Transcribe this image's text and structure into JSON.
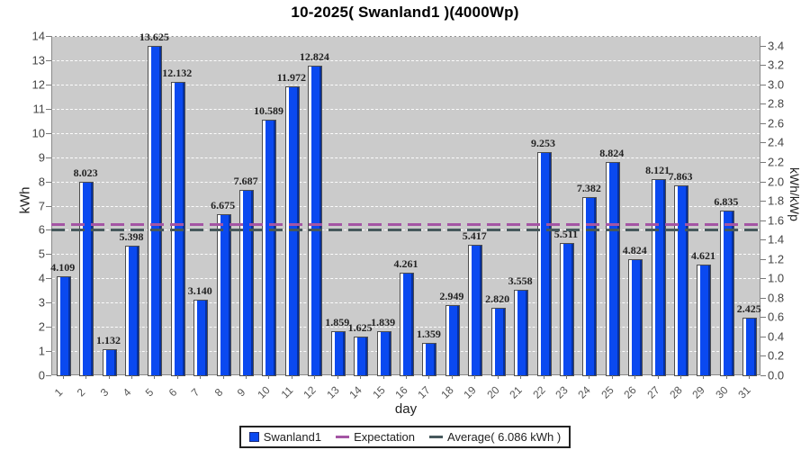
{
  "title": "10-2025( Swanland1 )(4000Wp)",
  "chart_data": {
    "type": "bar",
    "title": "10-2025( Swanland1 )(4000Wp)",
    "series_name": "Swanland1",
    "categories": [
      1,
      2,
      3,
      4,
      5,
      6,
      7,
      8,
      9,
      10,
      11,
      12,
      13,
      14,
      15,
      16,
      17,
      18,
      19,
      20,
      21,
      22,
      23,
      24,
      25,
      26,
      27,
      28,
      29,
      30,
      31
    ],
    "values": [
      4.109,
      8.023,
      1.132,
      5.398,
      13.625,
      12.132,
      3.14,
      6.675,
      7.687,
      10.589,
      11.972,
      12.824,
      1.859,
      1.625,
      1.839,
      4.261,
      1.359,
      2.949,
      5.417,
      2.82,
      3.558,
      9.253,
      5.511,
      7.382,
      8.824,
      4.824,
      8.121,
      7.863,
      4.621,
      6.835,
      2.425
    ],
    "xlabel": "day",
    "ylabel_left": "kWh",
    "ylabel_right": "kWh/kWp",
    "ylim_left": [
      0,
      14
    ],
    "ylim_right": [
      0,
      3.5
    ],
    "y_ticks_left": [
      0,
      1,
      2,
      3,
      4,
      5,
      6,
      7,
      8,
      9,
      10,
      11,
      12,
      13,
      14
    ],
    "y_ticks_right": [
      "0.0",
      "0.2",
      "0.4",
      "0.6",
      "0.8",
      "1.0",
      "1.2",
      "1.4",
      "1.6",
      "1.8",
      "2.0",
      "2.2",
      "2.4",
      "2.6",
      "2.8",
      "3.0",
      "3.2",
      "3.4"
    ],
    "grid": "horizontal white dashed lines every 1 kWh",
    "legend_position": "bottom",
    "average_kwh": 6.086,
    "expectation_kwh": 6.2,
    "legend": [
      {
        "label": "Swanland1",
        "swatch": "square",
        "color": "#0a49f0"
      },
      {
        "label": "Expectation",
        "swatch": "line",
        "color": "#a455a4"
      },
      {
        "label": "Average( 6.086 kWh )",
        "swatch": "line",
        "color": "#46585c"
      }
    ]
  },
  "colors": {
    "bar_fill": "#0a49f0",
    "bar_edge_dark": "#06309f",
    "bar_highlight": "#ffffff",
    "bar_outline": "#4d4d4d",
    "plot_background": "#cbcbcb",
    "grid_line": "#ffffff",
    "expectation_line": "#a455a4",
    "average_line": "#46585c",
    "tick_text": "#444444",
    "title_text": "#000000"
  }
}
